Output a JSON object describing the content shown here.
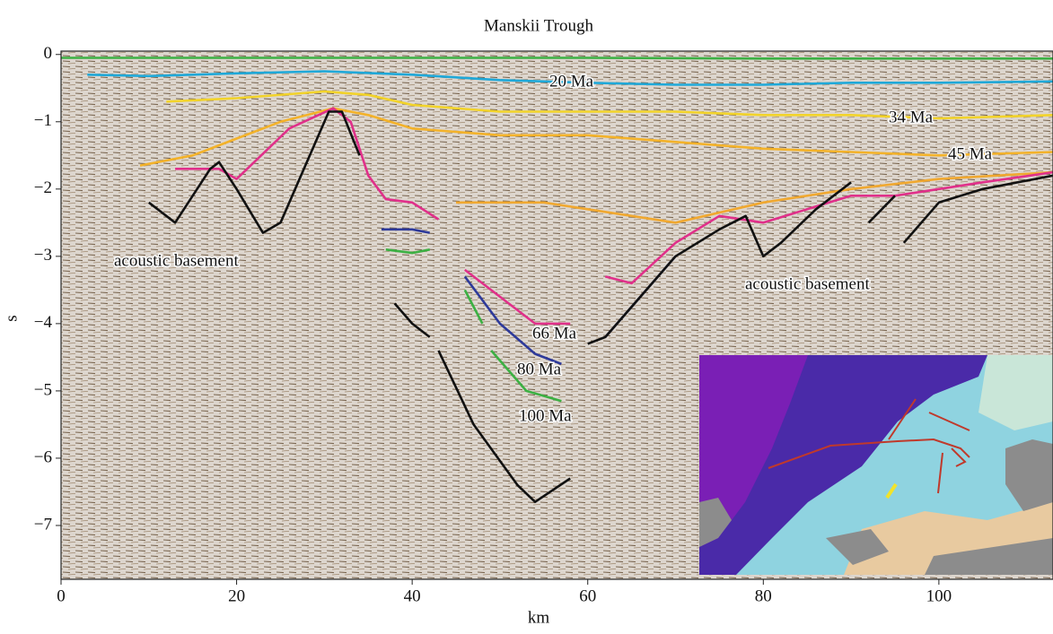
{
  "chart_data": {
    "type": "section",
    "title": "Manskii Trough",
    "x_label": "km",
    "y_label": "s",
    "xlim": [
      0,
      113
    ],
    "ylim": [
      -7.8,
      0.05
    ],
    "xticks": [
      0,
      20,
      40,
      60,
      80,
      100
    ],
    "yticks": [
      0,
      {
        "value": -1,
        "label": "−1"
      },
      {
        "value": -2,
        "label": "−2"
      },
      {
        "value": -3,
        "label": "−3"
      },
      {
        "value": -4,
        "label": "−4"
      },
      {
        "value": -5,
        "label": "−5"
      },
      {
        "value": -6,
        "label": "−6"
      },
      {
        "value": -7,
        "label": "−7"
      }
    ],
    "annotations": [
      "20 Ma",
      "34 Ma",
      "45 Ma",
      "66 Ma",
      "80 Ma",
      "100 Ma",
      "acoustic basement",
      "acoustic basement"
    ],
    "horizons": [
      {
        "color": "#3cb043",
        "x": [
          0,
          20,
          40,
          60,
          80,
          100,
          113
        ],
        "values": [
          -0.05,
          -0.05,
          -0.05,
          -0.05,
          -0.06,
          -0.06,
          -0.06
        ]
      },
      {
        "color": "#1fa8d8",
        "x": [
          3,
          10,
          20,
          30,
          40,
          50,
          60,
          70,
          80,
          90,
          100,
          113
        ],
        "values": [
          -0.3,
          -0.32,
          -0.28,
          -0.25,
          -0.3,
          -0.38,
          -0.42,
          -0.45,
          -0.45,
          -0.42,
          -0.42,
          -0.4
        ]
      },
      {
        "color": "#f2d32a",
        "x": [
          12,
          20,
          30,
          35,
          40,
          50,
          60,
          70,
          80,
          90,
          100,
          113
        ],
        "values": [
          -0.7,
          -0.65,
          -0.55,
          -0.6,
          -0.75,
          -0.85,
          -0.85,
          -0.85,
          -0.9,
          -0.9,
          -0.95,
          -0.9
        ]
      },
      {
        "color": "#f3b22a",
        "x": [
          9,
          15,
          20,
          25,
          31,
          35,
          40,
          50,
          60,
          70,
          80,
          90,
          100,
          113
        ],
        "values": [
          -1.65,
          -1.5,
          -1.25,
          -1.0,
          -0.8,
          -0.9,
          -1.1,
          -1.2,
          -1.2,
          -1.3,
          -1.4,
          -1.45,
          -1.5,
          -1.45
        ]
      },
      {
        "color": "#f0a830",
        "x": [
          45,
          55,
          60,
          70,
          80,
          90,
          100,
          113
        ],
        "values": [
          -2.2,
          -2.2,
          -2.3,
          -2.5,
          -2.2,
          -2.0,
          -1.85,
          -1.75
        ]
      },
      {
        "color": "#e0308a",
        "x": [
          13,
          18,
          20,
          26,
          31,
          33,
          35,
          37,
          40,
          43,
          null,
          46,
          50,
          54,
          58,
          null,
          62,
          65,
          70,
          75,
          80,
          85,
          90,
          95,
          100,
          105,
          113
        ],
        "values": [
          -1.7,
          -1.7,
          -1.85,
          -1.1,
          -0.8,
          -1.0,
          -1.8,
          -2.15,
          -2.2,
          -2.45,
          null,
          -3.2,
          -3.6,
          -4.0,
          -4.0,
          null,
          -3.3,
          -3.4,
          -2.8,
          -2.4,
          -2.5,
          -2.3,
          -2.1,
          -2.1,
          -2.0,
          -1.9,
          -1.75
        ]
      },
      {
        "color": "#2e3a9a",
        "x": [
          36.5,
          40,
          42,
          null,
          46,
          50,
          54,
          57,
          null,
          62,
          66,
          70
        ],
        "values": [
          -2.6,
          -2.6,
          -2.65,
          null,
          -3.3,
          -4.0,
          -4.45,
          -4.6,
          null,
          -4.2,
          -3.6,
          -3.0
        ]
      },
      {
        "color": "#3cb043",
        "x": [
          37,
          40,
          42,
          null,
          46,
          48,
          null,
          49,
          53,
          57
        ],
        "values": [
          -2.9,
          -2.95,
          -2.9,
          null,
          -3.5,
          -4.0,
          null,
          -4.4,
          -5.0,
          -5.15
        ]
      },
      {
        "color": "#111111",
        "x": [
          10,
          13,
          17,
          18,
          20,
          23,
          25,
          28,
          30.5,
          32,
          34,
          null,
          38,
          40,
          42,
          null,
          43,
          47,
          52,
          54,
          58,
          null,
          60,
          62,
          66,
          70,
          75,
          78,
          80,
          82,
          86,
          90,
          null,
          92,
          95,
          null,
          96,
          100,
          105,
          113
        ],
        "values": [
          -2.2,
          -2.5,
          -1.7,
          -1.6,
          -2.0,
          -2.65,
          -2.5,
          -1.6,
          -0.85,
          -0.85,
          -1.5,
          null,
          -3.7,
          -4.0,
          -4.2,
          null,
          -4.4,
          -5.5,
          -6.4,
          -6.65,
          -6.3,
          null,
          -4.3,
          -4.2,
          -3.6,
          -3.0,
          -2.6,
          -2.4,
          -3.0,
          -2.8,
          -2.3,
          -1.9,
          null,
          -2.5,
          -2.1,
          null,
          -2.8,
          -2.2,
          -2.0,
          -1.8
        ]
      }
    ]
  }
}
